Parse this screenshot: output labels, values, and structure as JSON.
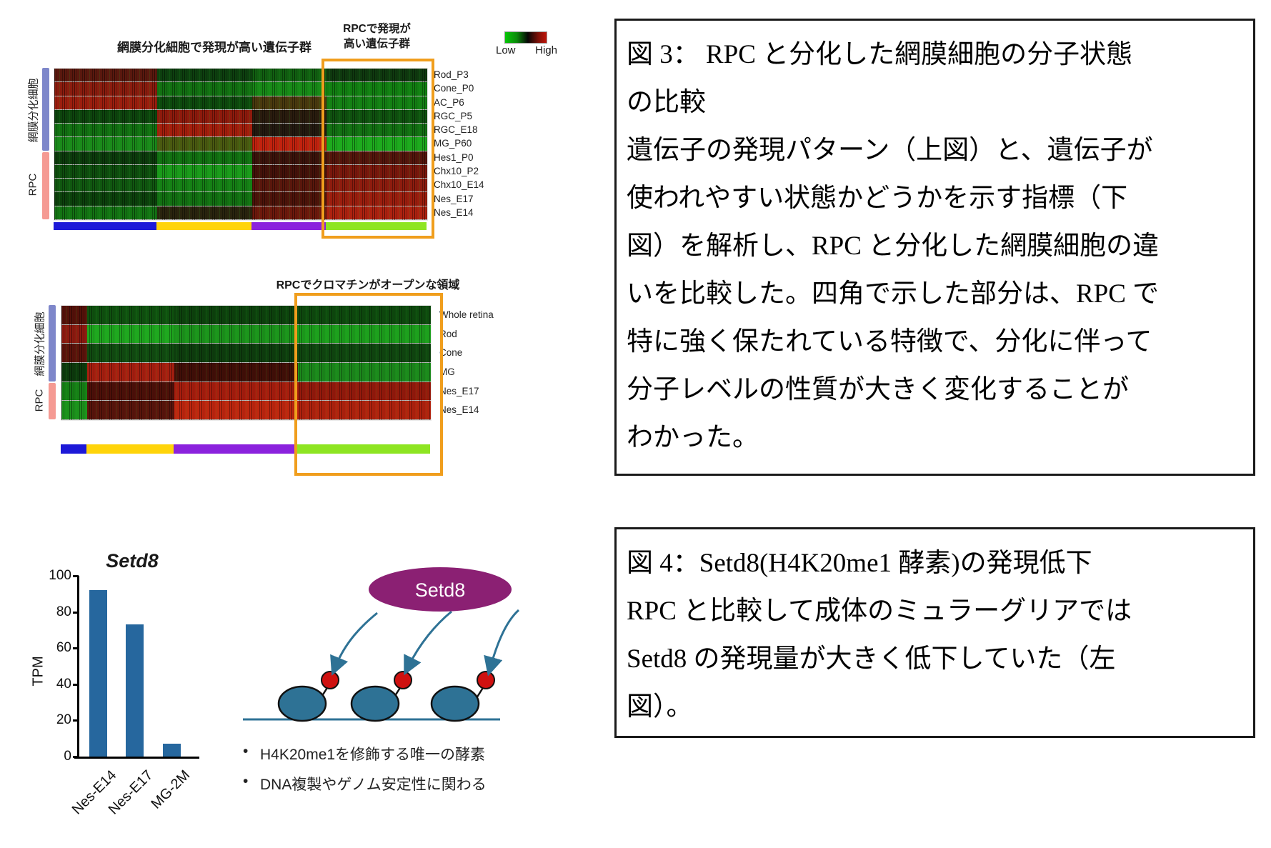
{
  "chart_data": [
    {
      "type": "heatmap",
      "title": "網膜分化細胞で発現が高い遺伝子群",
      "highlight_title": "RPCで発現が\n高い遺伝子群",
      "legend": {
        "low": "Low",
        "high": "High",
        "scale": "green=low, black=mid, red=high"
      },
      "row_groups": [
        {
          "label": "網膜分化細胞",
          "rows": 6,
          "band_color": "#7e87ca"
        },
        {
          "label": "RPC",
          "rows": 5,
          "band_color": "#f59a93"
        }
      ],
      "rows": [
        {
          "label": "Rod_P3",
          "segments": [
            "#5a180e",
            "#0d400f",
            "#116011",
            "#0f3a0f"
          ]
        },
        {
          "label": "Cone_P0",
          "segments": [
            "#8a1c0e",
            "#127012",
            "#178a17",
            "#128012"
          ]
        },
        {
          "label": "AC_P6",
          "segments": [
            "#9c1e0e",
            "#0d4a0d",
            "#4a3a0e",
            "#148014"
          ]
        },
        {
          "label": "RGC_P5",
          "segments": [
            "#0d450d",
            "#8e1a0c",
            "#2a1c0e",
            "#0f520f"
          ]
        },
        {
          "label": "RGC_E18",
          "segments": [
            "#127012",
            "#a41e0c",
            "#241a10",
            "#137013"
          ]
        },
        {
          "label": "MG_P60",
          "segments": [
            "#1a8a1a",
            "#4a5a10",
            "#c2220e",
            "#1daa1d"
          ]
        },
        {
          "label": "Hes1_P0",
          "segments": [
            "#0c3c0c",
            "#117011",
            "#3c130b",
            "#55160c"
          ]
        },
        {
          "label": "Chx10_P2",
          "segments": [
            "#0e4e0e",
            "#1a9a1a",
            "#45120a",
            "#7a180c"
          ]
        },
        {
          "label": "Chx10_E14",
          "segments": [
            "#105810",
            "#158015",
            "#5a170c",
            "#8e1c0e"
          ]
        },
        {
          "label": "Nes_E17",
          "segments": [
            "#0c420c",
            "#127012",
            "#4e140a",
            "#9c1e0e"
          ]
        },
        {
          "label": "Nes_E14",
          "segments": [
            "#137413",
            "#2a240e",
            "#6e190c",
            "#ae2210"
          ]
        }
      ],
      "col_group_widths": [
        27.5,
        25.5,
        20,
        27
      ],
      "col_group_colors": [
        "#1d19d8",
        "#ffd40a",
        "#8b22dd",
        "#8ee522"
      ],
      "highlighted_region": "right gene cluster (green block) boxed in orange — genes highly expressed in RPC rows"
    },
    {
      "type": "heatmap",
      "title": "RPCでクロマチンがオープンな領域",
      "row_groups": [
        {
          "label": "網膜分化細胞",
          "rows": 4,
          "band_color": "#7e87ca"
        },
        {
          "label": "RPC",
          "rows": 2,
          "band_color": "#f59a93"
        }
      ],
      "rows": [
        {
          "label": "Whole retina",
          "segments": [
            "#551109",
            "#0f520f",
            "#0d430d",
            "#0e4a0e"
          ]
        },
        {
          "label": "Rod",
          "segments": [
            "#8e1a10",
            "#1fa81f",
            "#1c951c",
            "#1da01d"
          ]
        },
        {
          "label": "Cone",
          "segments": [
            "#5c130b",
            "#114c11",
            "#0e3e0e",
            "#104710"
          ]
        },
        {
          "label": "MG",
          "segments": [
            "#0d3a0d",
            "#a81f10",
            "#420f08",
            "#1c8a1c"
          ]
        },
        {
          "label": "Nes_E17",
          "segments": [
            "#168016",
            "#4e1009",
            "#a81d0e",
            "#961a0c"
          ]
        },
        {
          "label": "Nes_E14",
          "segments": [
            "#1c921c",
            "#5a150c",
            "#c0260f",
            "#b2220e"
          ]
        }
      ],
      "col_group_widths": [
        7,
        23.5,
        33.5,
        36
      ],
      "col_group_colors": [
        "#1d19d8",
        "#ffd40a",
        "#8b22dd",
        "#8ee522"
      ],
      "highlighted_region": "right region (green block) boxed in orange — chromatin open in RPC rows"
    },
    {
      "type": "bar",
      "title": "Setd8",
      "ylabel": "TPM",
      "categories": [
        "Nes-E14",
        "Nes-E17",
        "MG-2M"
      ],
      "values": [
        92,
        73,
        7
      ],
      "ylim": [
        0,
        100
      ],
      "yticks": [
        0,
        20,
        40,
        60,
        80,
        100
      ],
      "bar_color": "#26679e"
    }
  ],
  "setd8_diagram": {
    "enzyme_label": "Setd8",
    "enzyme_color": "#8b2073",
    "nucleosome_color": "#2e7295",
    "mark_color": "#cf1110",
    "bullets": [
      "H4K20me1を修飾する唯一の酵素",
      "DNA複製やゲノム安定性に関わる"
    ]
  },
  "caption_boxes": {
    "figure3": {
      "text": "図 3： RPC と分化した網膜細胞の分子状態\nの比較\n遺伝子の発現パターン（上図）と、遺伝子が\n使われやすい状態かどうかを示す指標（下\n図）を解析し、RPC と分化した網膜細胞の違\nいを比較した。四角で示した部分は、RPC で\n特に強く保たれている特徴で、分化に伴って\n分子レベルの性質が大きく変化することが\nわかった。"
    },
    "figure4": {
      "text": "図 4：Setd8(H4K20me1 酵素)の発現低下\nRPC と比較して成体のミュラーグリアでは\nSetd8 の発現量が大きく低下していた（左\n図）。"
    }
  }
}
